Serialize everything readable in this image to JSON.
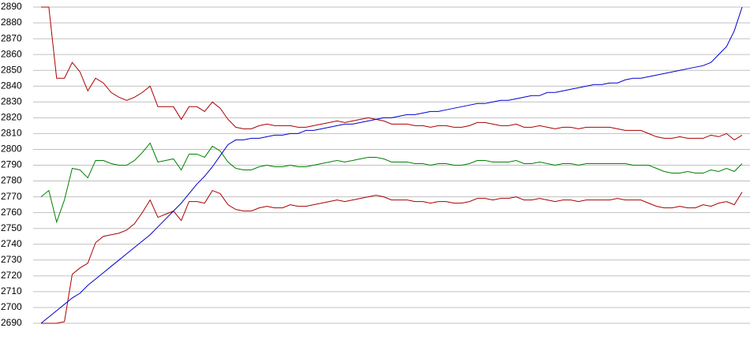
{
  "chart_data": {
    "type": "line",
    "ylim": [
      2690,
      2890
    ],
    "yticks": [
      2690,
      2700,
      2710,
      2720,
      2730,
      2740,
      2750,
      2760,
      2770,
      2780,
      2790,
      2800,
      2810,
      2820,
      2830,
      2840,
      2850,
      2860,
      2870,
      2880,
      2890
    ],
    "grid": true,
    "series": [
      {
        "color": "#aa0000",
        "values": [
          2890,
          2890,
          2845,
          2845,
          2855,
          2849,
          2837,
          2845,
          2842,
          2836,
          2833,
          2831,
          2833,
          2836,
          2840,
          2827,
          2827,
          2827,
          2819,
          2827,
          2827,
          2824,
          2830,
          2826,
          2819,
          2814,
          2813,
          2813,
          2815,
          2816,
          2815,
          2815,
          2815,
          2814,
          2814,
          2815,
          2816,
          2817,
          2818,
          2817,
          2818,
          2819,
          2820,
          2819,
          2818,
          2816,
          2816,
          2816,
          2815,
          2815,
          2814,
          2815,
          2815,
          2814,
          2814,
          2815,
          2817,
          2817,
          2816,
          2815,
          2815,
          2816,
          2814,
          2814,
          2815,
          2814,
          2813,
          2814,
          2814,
          2813,
          2814,
          2814,
          2814,
          2814,
          2813,
          2812,
          2812,
          2812,
          2810,
          2808,
          2807,
          2807,
          2808,
          2807,
          2807,
          2807,
          2809,
          2808,
          2810,
          2806,
          2809
        ]
      },
      {
        "color": "#008000",
        "values": [
          2770,
          2774,
          2754,
          2768,
          2788,
          2787,
          2782,
          2793,
          2793,
          2791,
          2790,
          2790,
          2793,
          2798,
          2804,
          2792,
          2793,
          2794,
          2787,
          2797,
          2797,
          2795,
          2802,
          2799,
          2792,
          2788,
          2787,
          2787,
          2789,
          2790,
          2789,
          2789,
          2790,
          2789,
          2789,
          2790,
          2791,
          2792,
          2793,
          2792,
          2793,
          2794,
          2795,
          2795,
          2794,
          2792,
          2792,
          2792,
          2791,
          2791,
          2790,
          2791,
          2791,
          2790,
          2790,
          2791,
          2793,
          2793,
          2792,
          2792,
          2792,
          2793,
          2791,
          2791,
          2792,
          2791,
          2790,
          2791,
          2791,
          2790,
          2791,
          2791,
          2791,
          2791,
          2791,
          2791,
          2790,
          2790,
          2790,
          2788,
          2786,
          2785,
          2785,
          2786,
          2785,
          2785,
          2787,
          2786,
          2788,
          2786,
          2791
        ]
      },
      {
        "color": "#aa0000",
        "values": [
          2690,
          2690,
          2690,
          2691,
          2721,
          2725,
          2728,
          2741,
          2745,
          2746,
          2747,
          2749,
          2753,
          2760,
          2768,
          2757,
          2759,
          2761,
          2755,
          2767,
          2767,
          2766,
          2774,
          2772,
          2765,
          2762,
          2761,
          2761,
          2763,
          2764,
          2763,
          2763,
          2765,
          2764,
          2764,
          2765,
          2766,
          2767,
          2768,
          2767,
          2768,
          2769,
          2770,
          2771,
          2770,
          2768,
          2768,
          2768,
          2767,
          2767,
          2766,
          2767,
          2767,
          2766,
          2766,
          2767,
          2769,
          2769,
          2768,
          2769,
          2769,
          2770,
          2768,
          2768,
          2769,
          2768,
          2767,
          2768,
          2768,
          2767,
          2768,
          2768,
          2768,
          2768,
          2769,
          2768,
          2768,
          2768,
          2766,
          2764,
          2763,
          2763,
          2764,
          2763,
          2763,
          2765,
          2764,
          2766,
          2767,
          2765,
          2773
        ]
      },
      {
        "color": "#0000cc",
        "values": [
          2690,
          2694,
          2698,
          2702,
          2706,
          2709,
          2714,
          2718,
          2722,
          2726,
          2730,
          2734,
          2738,
          2742,
          2746,
          2751,
          2756,
          2761,
          2766,
          2772,
          2778,
          2783,
          2789,
          2796,
          2803,
          2806,
          2806,
          2807,
          2807,
          2808,
          2809,
          2809,
          2810,
          2810,
          2812,
          2812,
          2813,
          2814,
          2815,
          2816,
          2816,
          2817,
          2818,
          2819,
          2820,
          2820,
          2821,
          2822,
          2822,
          2823,
          2824,
          2824,
          2825,
          2826,
          2827,
          2828,
          2829,
          2829,
          2830,
          2831,
          2831,
          2832,
          2833,
          2834,
          2834,
          2836,
          2836,
          2837,
          2838,
          2839,
          2840,
          2841,
          2841,
          2842,
          2842,
          2844,
          2845,
          2845,
          2846,
          2847,
          2848,
          2849,
          2850,
          2851,
          2852,
          2853,
          2855,
          2860,
          2865,
          2875,
          2890
        ]
      }
    ]
  }
}
